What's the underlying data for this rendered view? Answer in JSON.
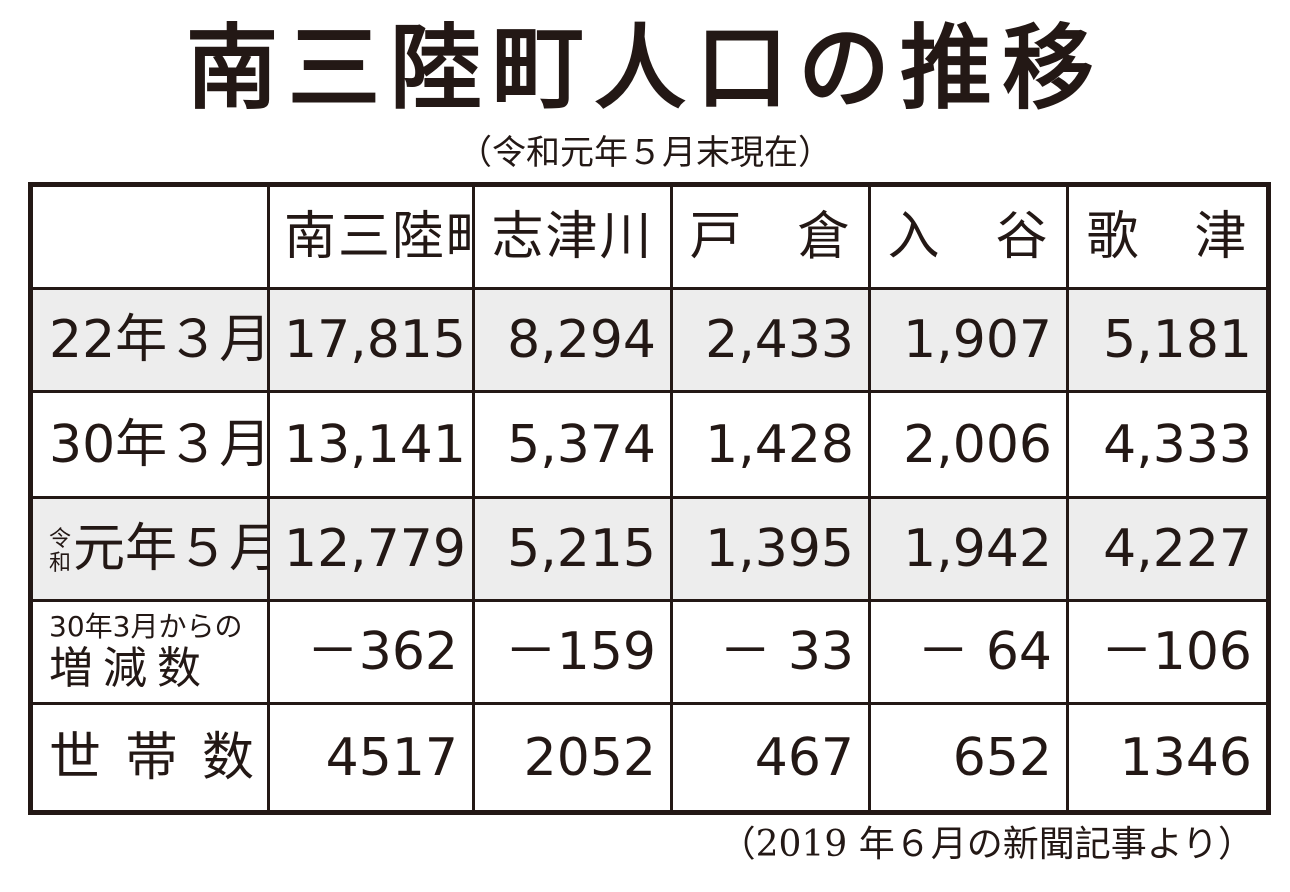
{
  "title": "南三陸町人口の推移",
  "subtitle": "（令和元年５月末現在）",
  "table": {
    "columns": [
      "南三陸町",
      "志津川",
      "戸　倉",
      "入　谷",
      "歌　津"
    ],
    "rows": [
      {
        "label": "22年３月",
        "values": [
          "17,815",
          "8,294",
          "2,433",
          "1,907",
          "5,181"
        ]
      },
      {
        "label": "30年３月",
        "values": [
          "13,141",
          "5,374",
          "1,428",
          "2,006",
          "4,333"
        ]
      },
      {
        "label_small_top": "令",
        "label_small_bottom": "和",
        "label": "元年５月",
        "values": [
          "12,779",
          "5,215",
          "1,395",
          "1,942",
          "4,227"
        ]
      },
      {
        "label_line1": "30年3月からの",
        "label_line2": "増減数",
        "values": [
          "－362",
          "－159",
          "－ 33",
          "－ 64",
          "－106"
        ]
      },
      {
        "label": "世 帯 数",
        "values": [
          "4517",
          "2052",
          "467",
          "652",
          "1346"
        ]
      }
    ]
  },
  "source": "（2019 年６月の新聞記事より）"
}
